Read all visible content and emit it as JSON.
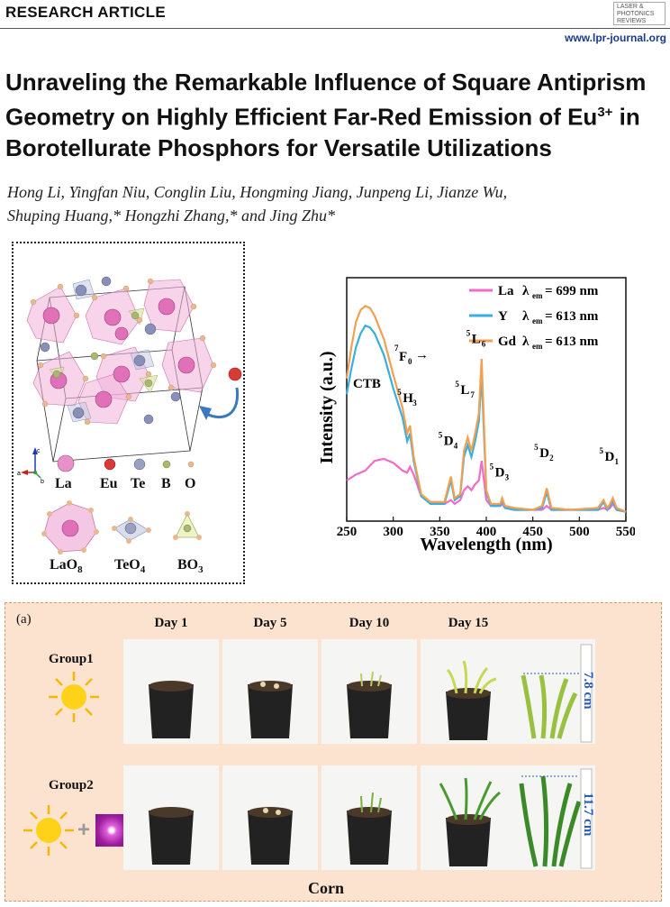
{
  "header": {
    "article_type": "RESEARCH ARTICLE",
    "journal_logo": "LASER & PHOTONICS REVIEWS",
    "url": "www.lpr-journal.org"
  },
  "title": {
    "line1": "Unraveling the Remarkable Influence of Square Antiprism",
    "line2": "Geometry on Highly Efficient Far-Red Emission of Eu",
    "line2_sup": "3+",
    "line2_end": " in",
    "line3": "Borotellurate Phosphors for Versatile Utilizations"
  },
  "authors": {
    "line1": "Hong Li, Yingfan Niu, Conglin Liu, Hongming Jiang, Junpeng Li, Jianze Wu,",
    "line2": "Shuping Huang,* Hongzhi Zhang,* and Jing Zhu*"
  },
  "structure": {
    "axes": {
      "c": "c",
      "a": "a",
      "b": "b"
    },
    "elements": [
      "La",
      "Eu",
      "Te",
      "B",
      "O"
    ],
    "element_colors": {
      "La": "#e890c8",
      "Eu": "#d83a36",
      "Te": "#9aa0c0",
      "B": "#a8b870",
      "O": "#e8b890"
    },
    "polyhedra": [
      {
        "base": "LaO",
        "sub": "8"
      },
      {
        "base": "TeO",
        "sub": "4"
      },
      {
        "base": "BO",
        "sub": "3"
      }
    ]
  },
  "chart_data": {
    "type": "line",
    "xlabel": "Wavelength (nm)",
    "ylabel": "Intensity (a.u.)",
    "xlim": [
      250,
      550
    ],
    "xticks": [
      250,
      300,
      350,
      400,
      450,
      500,
      550
    ],
    "legend_position": "top-right",
    "legend": [
      {
        "name": "La",
        "lambda_text": "λ",
        "sub": "em",
        "value": " = 699 nm",
        "color": "#f06cc8"
      },
      {
        "name": "Y",
        "lambda_text": "λ",
        "sub": "em",
        "value": " = 613 nm",
        "color": "#3aaee0"
      },
      {
        "name": "Gd",
        "lambda_text": "λ",
        "sub": "em",
        "value": " = 613 nm",
        "color": "#f0a050"
      }
    ],
    "annotations": {
      "ctb": "CTB",
      "f0": "F",
      "f0_sup": "7",
      "f0_sub": "0",
      "arrow": "→",
      "peaks": [
        {
          "sup": "5",
          "base": "H",
          "sub": "3"
        },
        {
          "sup": "5",
          "base": "D",
          "sub": "4"
        },
        {
          "sup": "5",
          "base": "L",
          "sub": "7"
        },
        {
          "sup": "5",
          "base": "L",
          "sub": "6"
        },
        {
          "sup": "5",
          "base": "D",
          "sub": "3"
        },
        {
          "sup": "5",
          "base": "D",
          "sub": "2"
        },
        {
          "sup": "5",
          "base": "D",
          "sub": "1"
        }
      ]
    },
    "series": [
      {
        "name": "La",
        "x": [
          250,
          260,
          270,
          280,
          290,
          300,
          310,
          315,
          318,
          322,
          330,
          340,
          355,
          362,
          366,
          372,
          376,
          380,
          384,
          388,
          392,
          395,
          400,
          405,
          415,
          417,
          420,
          430,
          450,
          460,
          465,
          470,
          490,
          520,
          526,
          530,
          533,
          536,
          540,
          550
        ],
        "y": [
          0.18,
          0.21,
          0.23,
          0.28,
          0.29,
          0.27,
          0.23,
          0.22,
          0.25,
          0.21,
          0.1,
          0.07,
          0.06,
          0.08,
          0.06,
          0.08,
          0.13,
          0.15,
          0.13,
          0.16,
          0.18,
          0.28,
          0.08,
          0.05,
          0.05,
          0.06,
          0.04,
          0.03,
          0.03,
          0.03,
          0.05,
          0.03,
          0.03,
          0.03,
          0.04,
          0.03,
          0.04,
          0.06,
          0.03,
          0.02
        ]
      },
      {
        "name": "Y",
        "x": [
          250,
          255,
          260,
          265,
          270,
          275,
          280,
          290,
          300,
          310,
          315,
          318,
          322,
          330,
          340,
          355,
          362,
          366,
          372,
          376,
          380,
          384,
          388,
          392,
          395,
          400,
          405,
          415,
          417,
          420,
          430,
          450,
          460,
          465,
          470,
          490,
          520,
          526,
          530,
          533,
          536,
          540,
          550
        ],
        "y": [
          0.62,
          0.75,
          0.86,
          0.93,
          0.97,
          0.96,
          0.93,
          0.82,
          0.65,
          0.5,
          0.38,
          0.42,
          0.28,
          0.1,
          0.06,
          0.06,
          0.18,
          0.08,
          0.1,
          0.3,
          0.36,
          0.3,
          0.38,
          0.48,
          0.72,
          0.12,
          0.05,
          0.05,
          0.08,
          0.04,
          0.03,
          0.03,
          0.04,
          0.12,
          0.03,
          0.03,
          0.03,
          0.07,
          0.03,
          0.05,
          0.08,
          0.03,
          0.02
        ]
      },
      {
        "name": "Gd",
        "x": [
          250,
          255,
          260,
          265,
          270,
          275,
          280,
          290,
          300,
          310,
          315,
          318,
          322,
          330,
          340,
          355,
          362,
          366,
          372,
          376,
          380,
          384,
          388,
          392,
          395,
          400,
          405,
          415,
          417,
          420,
          430,
          450,
          460,
          465,
          470,
          490,
          520,
          526,
          530,
          533,
          536,
          540,
          550
        ],
        "y": [
          0.7,
          0.86,
          0.99,
          1.05,
          1.07,
          1.06,
          1.02,
          0.9,
          0.72,
          0.55,
          0.42,
          0.46,
          0.3,
          0.11,
          0.07,
          0.07,
          0.2,
          0.09,
          0.11,
          0.33,
          0.4,
          0.33,
          0.42,
          0.52,
          0.8,
          0.13,
          0.06,
          0.06,
          0.09,
          0.05,
          0.04,
          0.03,
          0.05,
          0.14,
          0.04,
          0.03,
          0.04,
          0.08,
          0.04,
          0.06,
          0.09,
          0.04,
          0.02
        ]
      }
    ]
  },
  "photos": {
    "panel_label": "(a)",
    "days": [
      "Day 1",
      "Day 5",
      "Day 10",
      "Day 15"
    ],
    "groups": [
      {
        "label": "Group1",
        "measure": "7.8 cm"
      },
      {
        "label": "Group2",
        "measure": "11.7 cm"
      }
    ],
    "plus": "+",
    "caption": "Corn"
  }
}
